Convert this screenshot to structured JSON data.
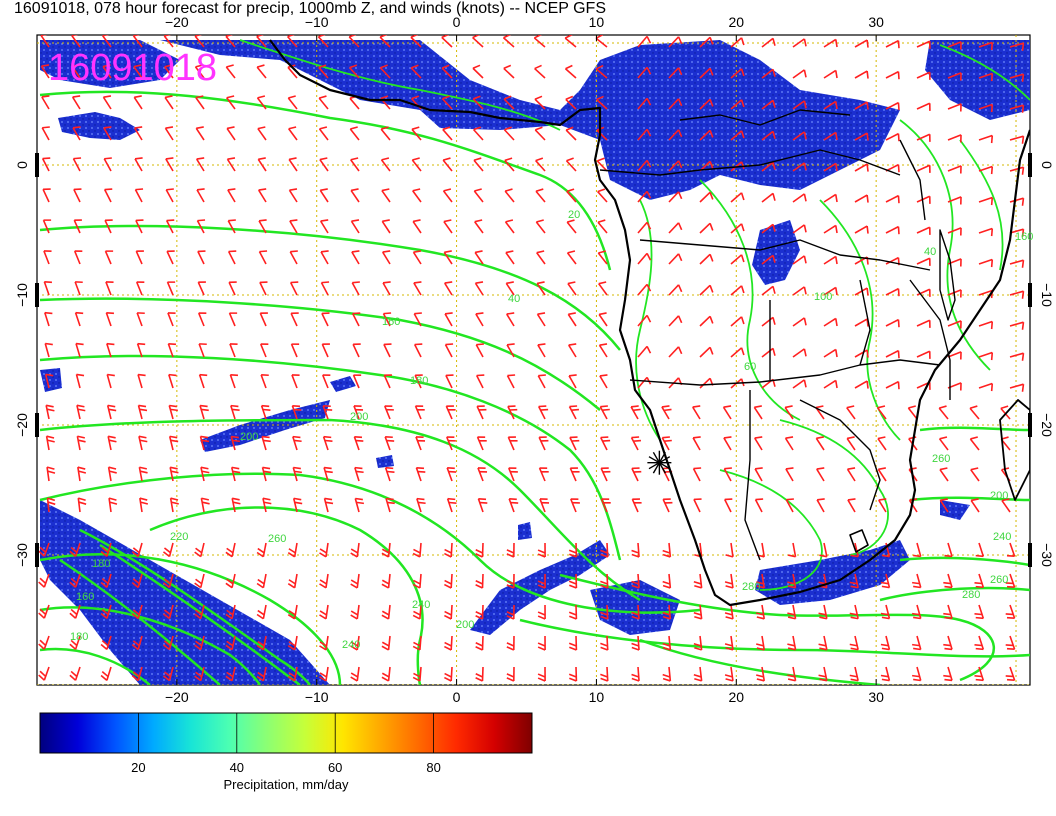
{
  "header": {
    "title": "16091018, 078 hour forecast for precip, 1000mb Z, and winds (knots) -- NCEP GFS"
  },
  "map": {
    "stamp": "16091018",
    "lon_range": [
      -30,
      41
    ],
    "lat_range": [
      -40,
      10
    ],
    "lon_ticks": [
      -20,
      -10,
      0,
      10,
      20,
      30
    ],
    "lat_ticks": [
      0,
      -10,
      -20,
      -30
    ],
    "lon_tick_labels": [
      "−20",
      "−10",
      "0",
      "10",
      "20",
      "30"
    ],
    "lat_tick_labels": [
      "0",
      "−10",
      "−20",
      "−30"
    ],
    "grid_spacing_deg": 10,
    "colors": {
      "contour": "#22e622",
      "contour_label": "#3fd63f",
      "wind_barb": "#ff2020",
      "coastline": "#000000",
      "grid": "#d6b800",
      "stamp": "#ff33ff"
    },
    "contour_labels": [
      "20",
      "40",
      "160",
      "180",
      "200",
      "200",
      "220",
      "240",
      "260",
      "280",
      "280",
      "260",
      "240",
      "180",
      "160",
      "180",
      "200",
      "240",
      "260",
      "200",
      "160",
      "40",
      "60",
      "100"
    ],
    "station_marker": {
      "lon": 14.5,
      "lat": -22.9,
      "icon": "asterisk-icon"
    },
    "layers": [
      "precipitation",
      "1000mb-geopotential-height",
      "wind-barbs"
    ]
  },
  "colorbar": {
    "min": 0,
    "max": 100,
    "ticks": [
      "20",
      "40",
      "60",
      "80"
    ],
    "label": "Precipitation, mm/day",
    "colors": [
      "#00007f",
      "#0000d9",
      "#0055ff",
      "#00aaff",
      "#19e5d6",
      "#4cffb2",
      "#8cff73",
      "#c6ff39",
      "#ffe600",
      "#ffa800",
      "#ff6a00",
      "#ff2a00",
      "#d40000",
      "#7f0000"
    ]
  }
}
